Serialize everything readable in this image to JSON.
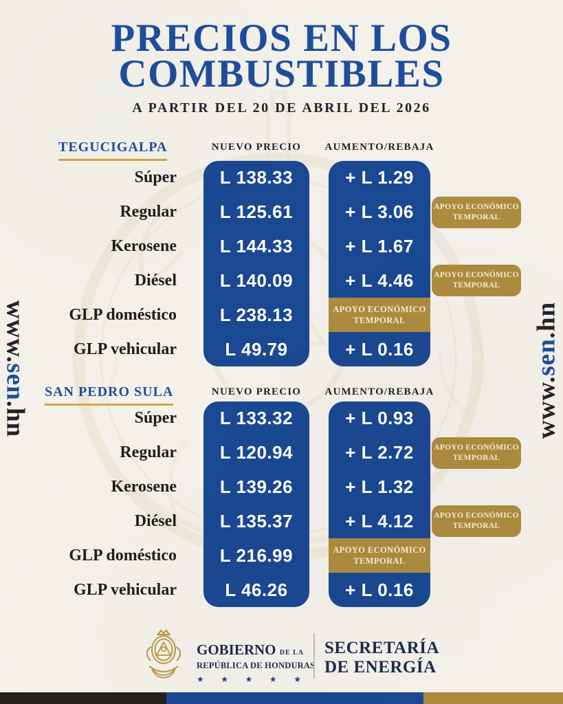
{
  "header": {
    "title_line1": "PRECIOS EN LOS",
    "title_line2": "COMBUSTIBLES",
    "subtitle": "A PARTIR DEL 20 DE ABRIL DEL 2026"
  },
  "columns": {
    "new_price": "NUEVO PRECIO",
    "change": "AUMENTO/REBAJA"
  },
  "badge": {
    "line1": "APOYO ECONÓMICO",
    "line2": "TEMPORAL"
  },
  "sections": [
    {
      "city": "TEGUCIGALPA",
      "rows": [
        {
          "label": "Súper",
          "price": "L 138.33",
          "change": "+ L 1.29"
        },
        {
          "label": "Regular",
          "price": "L 125.61",
          "change": "+ L 3.06",
          "note": "badge"
        },
        {
          "label": "Kerosene",
          "price": "L 144.33",
          "change": "+ L 1.67"
        },
        {
          "label": "Diésel",
          "price": "L 140.09",
          "change": "+ L 4.46",
          "note": "badge"
        },
        {
          "label": "GLP doméstico",
          "price": "L 238.13",
          "change": "",
          "note": "band"
        },
        {
          "label": "GLP vehicular",
          "price": "L 49.79",
          "change": "+ L 0.16"
        }
      ]
    },
    {
      "city": "SAN PEDRO SULA",
      "rows": [
        {
          "label": "Súper",
          "price": "L 133.32",
          "change": "+ L 0.93"
        },
        {
          "label": "Regular",
          "price": "L 120.94",
          "change": "+ L 2.72",
          "note": "badge"
        },
        {
          "label": "Kerosene",
          "price": "L 139.26",
          "change": "+ L 1.32"
        },
        {
          "label": "Diésel",
          "price": "L 135.37",
          "change": "+ L 4.12",
          "note": "badge"
        },
        {
          "label": "GLP doméstico",
          "price": "L 216.99",
          "change": "",
          "note": "band"
        },
        {
          "label": "GLP vehicular",
          "price": "L 46.26",
          "change": "+ L 0.16"
        }
      ]
    }
  ],
  "side": {
    "url_prefix": "www.",
    "url_name": "sen",
    "url_suffix": ".hn"
  },
  "footer": {
    "gobierno": "GOBIERNO",
    "de_la": "DE LA",
    "republica": "REPÚBLICA DE HONDURAS",
    "stars_count": 5,
    "star_glyph": "★",
    "secretaria_line1": "SECRETARÍA",
    "secretaria_line2": "DE ENERGÍA"
  },
  "colors": {
    "background": "#f4f1eb",
    "title_blue": "#1e4e9c",
    "box_blue": "#1a4892",
    "gold": "#ad8b3e",
    "underline_gold": "#d2a63c",
    "dark_text": "#23222a",
    "footer_navy": "#1c2b4d",
    "star_blue": "#1e3f8f",
    "bar_black": "#24201f",
    "badge_text": "#f7eed7"
  }
}
